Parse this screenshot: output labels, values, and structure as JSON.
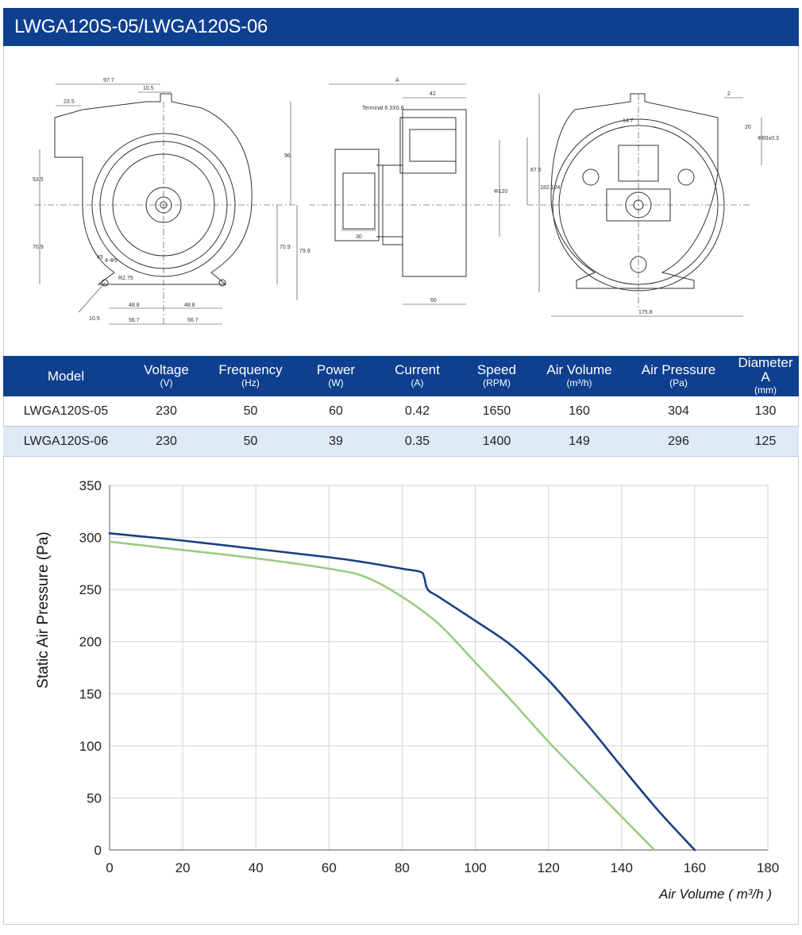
{
  "header": {
    "title": "LWGA120S-05/LWGA120S-06"
  },
  "drawing": {
    "front_dims": [
      "97.7",
      "10.5",
      "23.5",
      "96",
      "53.5",
      "70.9",
      "70.9",
      "79.9",
      "45",
      "4-Φ5",
      "R2.75",
      "48.8",
      "48.8",
      "10.5",
      "56.7",
      "56.7"
    ],
    "side_dims": [
      "A",
      "42",
      "Terminal 6.3X0.8",
      "Φ120",
      "30",
      "60"
    ],
    "back_dims": [
      "2",
      "14.7",
      "20",
      "Φ60±0.3",
      "87.5",
      "182.124",
      "175.8"
    ]
  },
  "table": {
    "headers": [
      {
        "label": "Model",
        "unit": ""
      },
      {
        "label": "Voltage",
        "unit": "(V)"
      },
      {
        "label": "Frequency",
        "unit": "(Hz)"
      },
      {
        "label": "Power",
        "unit": "(W)"
      },
      {
        "label": "Current",
        "unit": "(A)"
      },
      {
        "label": "Speed",
        "unit": "(RPM)"
      },
      {
        "label": "Air Volume",
        "unit": "(m³/h)"
      },
      {
        "label": "Air Pressure",
        "unit": "(Pa)"
      },
      {
        "label": "Diameter A",
        "unit": "(mm)"
      }
    ],
    "rows": [
      [
        "LWGA120S-05",
        "230",
        "50",
        "60",
        "0.42",
        "1650",
        "160",
        "304",
        "130"
      ],
      [
        "LWGA120S-06",
        "230",
        "50",
        "39",
        "0.35",
        "1400",
        "149",
        "296",
        "125"
      ]
    ]
  },
  "chart_data": {
    "type": "line",
    "title": "",
    "xlabel": "Air Volume ( m³/h )",
    "ylabel": "Static Air Pressure  (Pa)",
    "xlim": [
      0,
      180
    ],
    "ylim": [
      0,
      350
    ],
    "xticks": [
      0,
      20,
      40,
      60,
      80,
      100,
      120,
      140,
      160,
      180
    ],
    "yticks": [
      0,
      50,
      100,
      150,
      200,
      250,
      300,
      350
    ],
    "grid": true,
    "series": [
      {
        "color": "#1a3f85",
        "x": [
          0,
          20,
          40,
          60,
          70,
          80,
          85,
          86,
          87,
          90,
          100,
          110,
          120,
          130,
          140,
          150,
          160
        ],
        "y": [
          304,
          297,
          289,
          281,
          276,
          270,
          267,
          262,
          250,
          243,
          220,
          196,
          163,
          123,
          80,
          38,
          0
        ]
      },
      {
        "color": "#9acc83",
        "x": [
          0,
          20,
          40,
          60,
          70,
          80,
          90,
          100,
          110,
          120,
          130,
          140,
          149
        ],
        "y": [
          296,
          288,
          280,
          270,
          262,
          243,
          217,
          180,
          143,
          104,
          68,
          32,
          0
        ]
      }
    ]
  }
}
